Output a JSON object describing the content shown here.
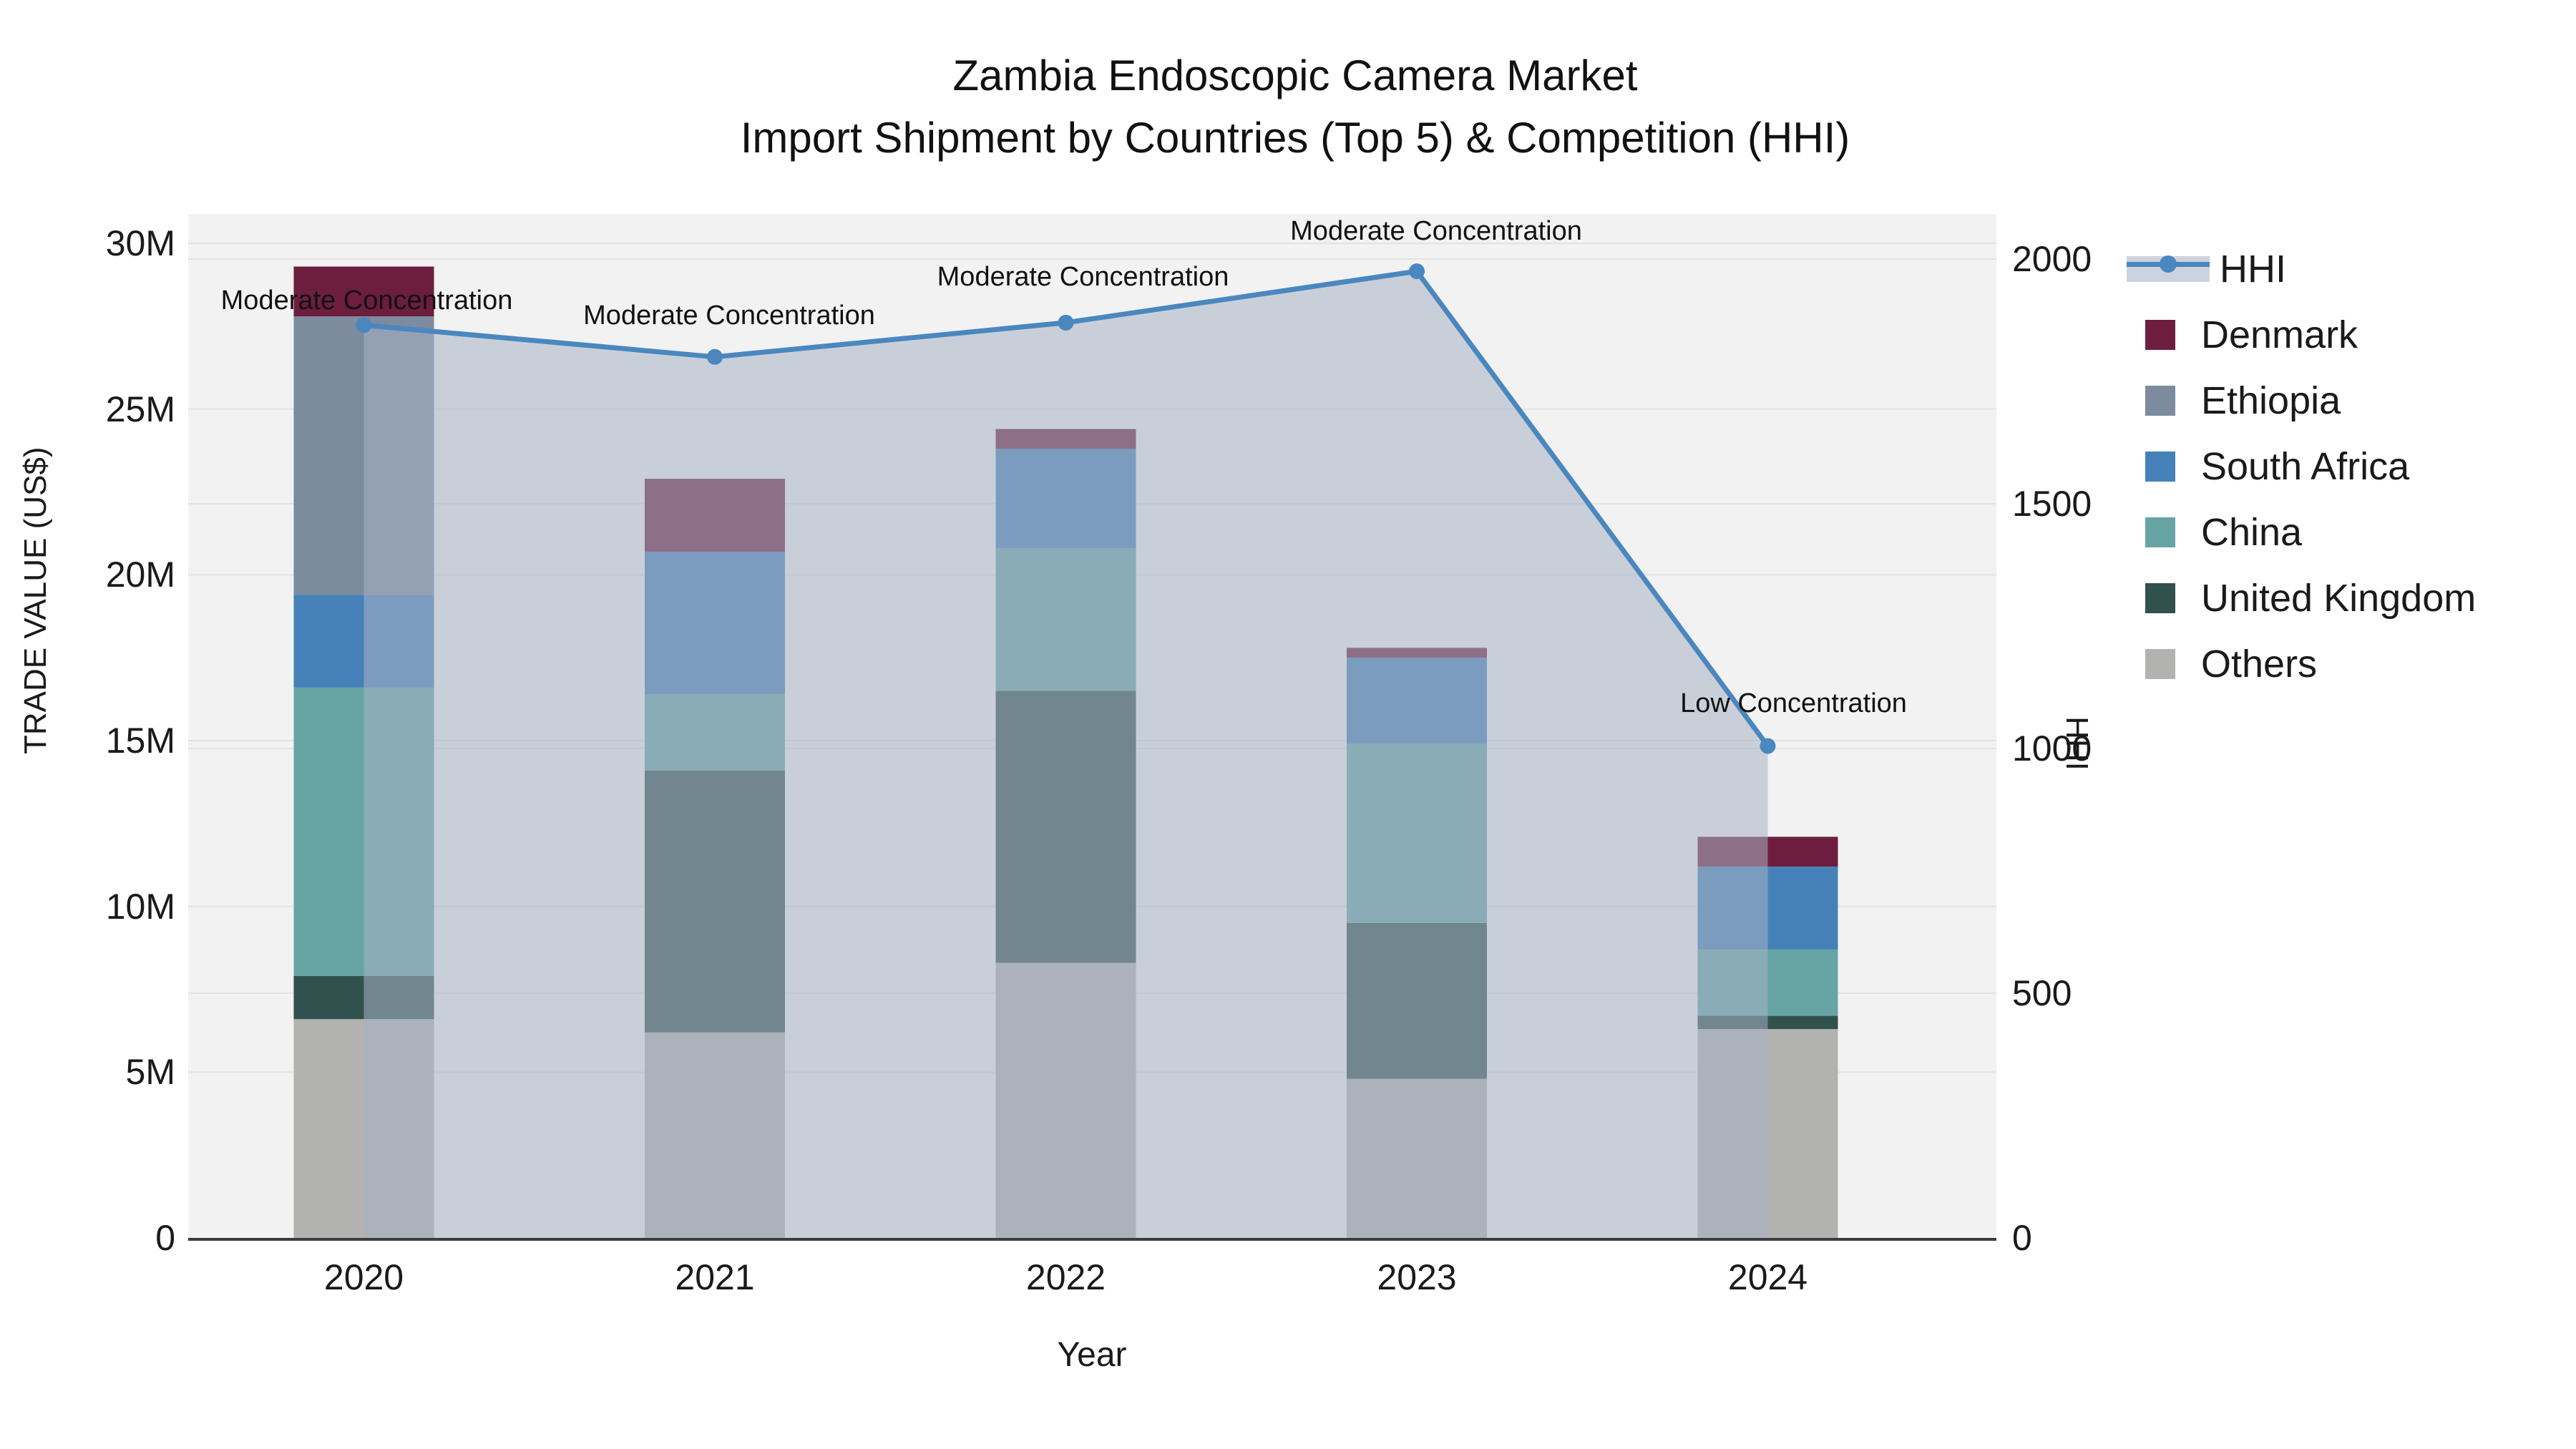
{
  "title": {
    "line1": "Zambia Endoscopic Camera Market",
    "line2": "Import Shipment by Countries (Top 5) & Competition (HHI)"
  },
  "axes": {
    "x": {
      "label": "Year",
      "tick_labels": [
        "2020",
        "2021",
        "2022",
        "2023",
        "2024"
      ]
    },
    "y_left": {
      "label": "TRADE VALUE (US$)",
      "tick_labels": [
        "0",
        "5M",
        "10M",
        "15M",
        "20M",
        "25M",
        "30M"
      ],
      "tick_values": [
        0,
        5,
        10,
        15,
        20,
        25,
        30
      ]
    },
    "y_right": {
      "label": "HHI",
      "tick_labels": [
        "0",
        "500",
        "1000",
        "1500",
        "2000"
      ],
      "tick_values": [
        0,
        500,
        1000,
        1500,
        2000
      ]
    }
  },
  "legend": {
    "items": [
      {
        "label": "HHI",
        "type": "line",
        "color": "#4a87bf"
      },
      {
        "label": "Denmark",
        "type": "square",
        "color": "#6d1e3e"
      },
      {
        "label": "Ethiopia",
        "type": "square",
        "color": "#7d8b9e"
      },
      {
        "label": "South Africa",
        "type": "square",
        "color": "#4581b8"
      },
      {
        "label": "China",
        "type": "square",
        "color": "#66a5a4"
      },
      {
        "label": "United Kingdom",
        "type": "square",
        "color": "#31514e"
      },
      {
        "label": "Others",
        "type": "square",
        "color": "#b2b2b0"
      }
    ]
  },
  "colors": {
    "plot_background": "#f2f2f2",
    "gridline": "#e3e3e3",
    "axis_spine": "#3c3c3c",
    "hhi_line": "#4a87bf",
    "hhi_band_fill": "rgba(167,179,197,0.55)",
    "text": "#1a1a1a"
  },
  "chart_data": {
    "type": "bar+line",
    "title": "Zambia Endoscopic Camera Market — Import Shipment by Countries (Top 5) & Competition (HHI)",
    "categories": [
      "2020",
      "2021",
      "2022",
      "2023",
      "2024"
    ],
    "bar_unit": "USD millions",
    "series": [
      {
        "name": "Denmark",
        "color": "#6d1e3e",
        "values": [
          1.5,
          2.2,
          0.6,
          0.3,
          0.9
        ]
      },
      {
        "name": "Ethiopia",
        "color": "#7d8b9e",
        "values": [
          8.4,
          0.0,
          0.0,
          0.0,
          0.0
        ]
      },
      {
        "name": "South Africa",
        "color": "#4581b8",
        "values": [
          2.8,
          4.3,
          3.0,
          2.6,
          2.5
        ]
      },
      {
        "name": "China",
        "color": "#66a5a4",
        "values": [
          8.7,
          2.3,
          4.3,
          5.4,
          2.0
        ]
      },
      {
        "name": "United Kingdom",
        "color": "#31514e",
        "values": [
          1.3,
          7.9,
          8.2,
          4.7,
          0.4
        ]
      },
      {
        "name": "Others",
        "color": "#b2b2b0",
        "values": [
          6.6,
          6.2,
          8.3,
          4.8,
          6.3
        ]
      }
    ],
    "bar_totals": [
      29.3,
      22.9,
      24.4,
      17.8,
      12.1
    ],
    "stack_order_bottom_to_top": [
      "Others",
      "United Kingdom",
      "China",
      "South Africa",
      "Ethiopia",
      "Denmark"
    ],
    "line_series": {
      "name": "HHI",
      "axis": "right",
      "color": "#4a87bf",
      "values": [
        1865,
        1800,
        1870,
        1975,
        1005
      ],
      "area_fill": true
    },
    "annotations": [
      {
        "category": "2020",
        "text": "Moderate Concentration"
      },
      {
        "category": "2021",
        "text": "Moderate Concentration"
      },
      {
        "category": "2022",
        "text": "Moderate Concentration"
      },
      {
        "category": "2023",
        "text": "Moderate Concentration"
      },
      {
        "category": "2024",
        "text": "Low Concentration"
      }
    ],
    "xlabel": "Year",
    "ylabel_left": "TRADE VALUE (US$)",
    "ylabel_right": "HHI",
    "ylim_left": [
      0,
      30.9
    ],
    "ylim_right": [
      0,
      2092
    ],
    "grid": true,
    "legend_position": "right"
  }
}
